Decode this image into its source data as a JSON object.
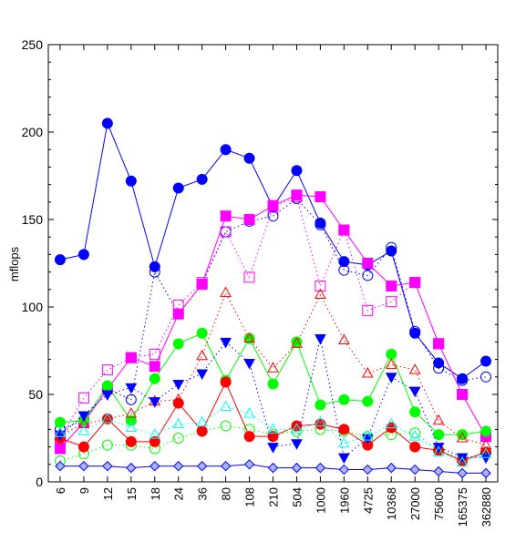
{
  "chart_data": {
    "type": "line",
    "title": "",
    "xlabel": "",
    "ylabel": "mflops",
    "ylim": [
      0,
      250
    ],
    "yticks": [
      0,
      50,
      100,
      150,
      200,
      250
    ],
    "grid": false,
    "legend": "none",
    "categories": [
      "6",
      "9",
      "12",
      "15",
      "18",
      "24",
      "36",
      "80",
      "108",
      "210",
      "504",
      "1000",
      "1960",
      "4725",
      "10368",
      "27000",
      "75600",
      "165375",
      "362880"
    ],
    "series": [
      {
        "color": "#0000ff",
        "line": "solid",
        "marker": "circle",
        "filled": true,
        "values": [
          127,
          130,
          205,
          172,
          123,
          168,
          173,
          190,
          185,
          157,
          178,
          148,
          126,
          124,
          132,
          85,
          68,
          59,
          69
        ]
      },
      {
        "color": "#0000ff",
        "line": "dotted",
        "marker": "circle",
        "filled": false,
        "values": [
          30,
          35,
          53,
          47,
          120,
          96,
          113,
          143,
          149,
          152,
          162,
          147,
          121,
          118,
          134,
          86,
          65,
          58,
          60
        ]
      },
      {
        "color": "#ff00ff",
        "line": "solid",
        "marker": "square",
        "filled": true,
        "values": [
          19,
          34,
          53,
          71,
          66,
          96,
          113,
          152,
          150,
          158,
          164,
          163,
          144,
          125,
          112,
          114,
          79,
          50,
          26
        ]
      },
      {
        "color": "#ff00ff",
        "line": "dotted",
        "marker": "square",
        "filled": false,
        "values": [
          25,
          48,
          64,
          71,
          73,
          101,
          114,
          143,
          117,
          157,
          163,
          112,
          144,
          98,
          103,
          114,
          79,
          50,
          26
        ]
      },
      {
        "color": "#00ff00",
        "line": "solid",
        "marker": "circle",
        "filled": true,
        "values": [
          34,
          35,
          55,
          35,
          59,
          79,
          85,
          58,
          82,
          56,
          80,
          44,
          47,
          46,
          73,
          40,
          27,
          27,
          29
        ]
      },
      {
        "color": "#00ff00",
        "line": "dotted",
        "marker": "circle",
        "filled": false,
        "values": [
          12,
          16,
          21,
          21,
          19,
          25,
          29,
          32,
          30,
          27,
          29,
          30,
          29,
          26,
          27,
          28,
          18,
          13,
          17
        ]
      },
      {
        "color": "#ff0000",
        "line": "solid",
        "marker": "circle",
        "filled": true,
        "values": [
          25,
          20,
          36,
          23,
          23,
          45,
          29,
          57,
          26,
          26,
          32,
          33,
          30,
          21,
          31,
          20,
          18,
          12,
          17
        ]
      },
      {
        "color": "#ff0000",
        "line": "dotted",
        "marker": "triangle-up",
        "filled": false,
        "values": [
          27,
          33,
          36,
          39,
          46,
          47,
          72,
          108,
          82,
          65,
          79,
          107,
          81,
          62,
          67,
          64,
          35,
          25,
          21
        ]
      },
      {
        "color": "#0000ff",
        "line": "dotted",
        "marker": "triangle-down",
        "filled": true,
        "values": [
          27,
          38,
          50,
          54,
          46,
          56,
          62,
          80,
          68,
          20,
          22,
          82,
          14,
          25,
          60,
          52,
          20,
          14,
          14
        ]
      },
      {
        "color": "#00ffff",
        "line": "dotted",
        "marker": "triangle-up",
        "filled": false,
        "values": [
          28,
          29,
          36,
          31,
          27,
          33,
          34,
          43,
          39,
          30,
          30,
          34,
          22,
          26,
          33,
          26,
          17,
          11,
          16
        ]
      },
      {
        "color": "#0000ff",
        "line": "solid",
        "marker": "diamond",
        "filled": false,
        "values": [
          9,
          9,
          9,
          8,
          9,
          9,
          9,
          9,
          10,
          8,
          8,
          8,
          7,
          7,
          8,
          7,
          6,
          5,
          5
        ]
      }
    ]
  }
}
